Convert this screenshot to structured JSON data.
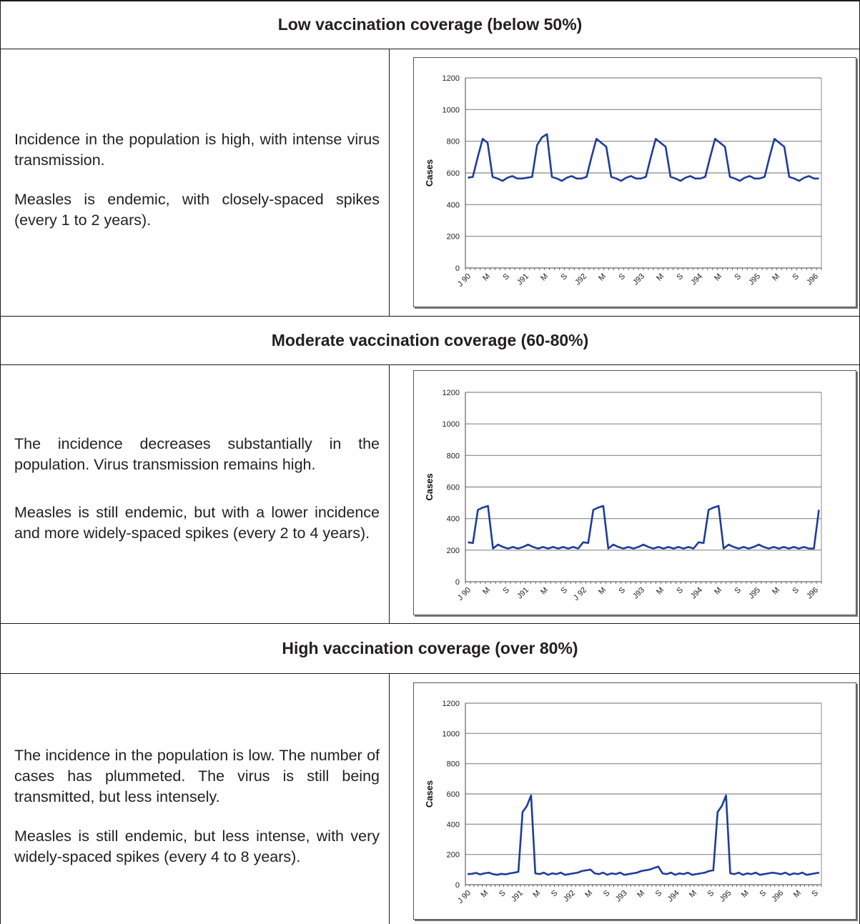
{
  "sections": [
    {
      "heading": "Low vaccination coverage (below 50%)",
      "paragraphs": [
        "Incidence in the population is high, with intense virus transmission.",
        "Measles is endemic, with closely-spaced spikes (every 1 to 2 years)."
      ]
    },
    {
      "heading": "Moderate vaccination coverage (60-80%)",
      "paragraphs": [
        "The incidence decreases substantially in the population. Virus transmission remains high.",
        "Measles is still endemic, but with a lower incidence and more widely-spaced spikes (every 2 to 4 years)."
      ]
    },
    {
      "heading": "High vaccination coverage (over 80%)",
      "paragraphs": [
        "The incidence in the population is low. The number of cases has plummeted. The virus is still being transmitted, but less intensely.",
        "Measles is still endemic, but less intense, with very widely-spaced spikes (every 4 to 8 years)."
      ]
    }
  ],
  "colors": {
    "line": "#1f3c9a",
    "grid": "#888888",
    "text": "#231f20"
  },
  "chart_data": [
    {
      "type": "line",
      "ylabel": "Cases",
      "ylim": [
        0,
        1200
      ],
      "yticks": [
        0,
        200,
        400,
        600,
        800,
        1000,
        1200
      ],
      "grid": true,
      "xtick_labels": [
        "J 90",
        "M",
        "S",
        "J91",
        "M",
        "S",
        "J92",
        "M",
        "S",
        "J93",
        "M",
        "S",
        "J94",
        "M",
        "S",
        "J95",
        "M",
        "S",
        "J96"
      ],
      "series": [
        {
          "values": [
            570,
            575,
            700,
            815,
            790,
            575,
            565,
            550,
            570,
            580,
            565,
            565,
            570,
            575,
            775,
            825,
            845,
            575,
            565,
            550,
            570,
            580,
            565,
            565,
            575,
            700,
            815,
            790,
            765,
            575,
            565,
            550,
            570,
            580,
            565,
            565,
            575,
            700,
            815,
            790,
            765,
            575,
            565,
            550,
            570,
            580,
            565,
            565,
            575,
            700,
            815,
            790,
            765,
            575,
            565,
            550,
            570,
            580,
            565,
            565,
            575,
            700,
            815,
            790,
            765,
            575,
            565,
            550,
            570,
            580,
            565,
            565
          ]
        }
      ]
    },
    {
      "type": "line",
      "ylabel": "Cases",
      "ylim": [
        0,
        1200
      ],
      "yticks": [
        0,
        200,
        400,
        600,
        800,
        1000,
        1200
      ],
      "grid": true,
      "xtick_labels": [
        "J 90",
        "M",
        "S",
        "J91",
        "M",
        "S",
        "J 92",
        "M",
        "S",
        "J93",
        "M",
        "S",
        "J94",
        "M",
        "S",
        "J95",
        "M",
        "S",
        "J96"
      ],
      "series": [
        {
          "values": [
            250,
            245,
            455,
            470,
            480,
            210,
            235,
            220,
            210,
            220,
            210,
            220,
            235,
            220,
            210,
            220,
            210,
            220,
            210,
            220,
            210,
            220,
            210,
            250,
            245,
            455,
            470,
            480,
            210,
            235,
            220,
            210,
            220,
            210,
            220,
            235,
            220,
            210,
            220,
            210,
            220,
            210,
            220,
            210,
            220,
            210,
            250,
            245,
            455,
            470,
            480,
            210,
            235,
            220,
            210,
            220,
            210,
            220,
            235,
            220,
            210,
            220,
            210,
            220,
            210,
            220,
            210,
            220,
            210,
            210,
            455
          ]
        }
      ]
    },
    {
      "type": "line",
      "ylabel": "Cases",
      "ylim": [
        0,
        1200
      ],
      "yticks": [
        0,
        200,
        400,
        600,
        800,
        1000,
        1200
      ],
      "grid": true,
      "xtick_labels": [
        "J 90",
        "M",
        "S",
        "J91",
        "M",
        "S",
        "J92",
        "M",
        "S",
        "J93",
        "M",
        "S",
        "J94",
        "M",
        "S",
        "J95",
        "M",
        "S",
        "J96",
        "M",
        "S"
      ],
      "series": [
        {
          "values": [
            70,
            72,
            78,
            68,
            75,
            80,
            70,
            65,
            72,
            68,
            75,
            80,
            85,
            480,
            520,
            590,
            75,
            70,
            80,
            65,
            75,
            70,
            80,
            65,
            70,
            75,
            80,
            90,
            95,
            100,
            75,
            70,
            80,
            65,
            75,
            70,
            80,
            65,
            70,
            75,
            80,
            90,
            95,
            100,
            110,
            120,
            75,
            70,
            80,
            65,
            75,
            70,
            80,
            65,
            70,
            75,
            80,
            90,
            95,
            480,
            520,
            590,
            75,
            70,
            80,
            65,
            75,
            70,
            80,
            65,
            70,
            75,
            80,
            75,
            70,
            80,
            65,
            75,
            70,
            80,
            65,
            70,
            75,
            80
          ]
        }
      ]
    }
  ]
}
